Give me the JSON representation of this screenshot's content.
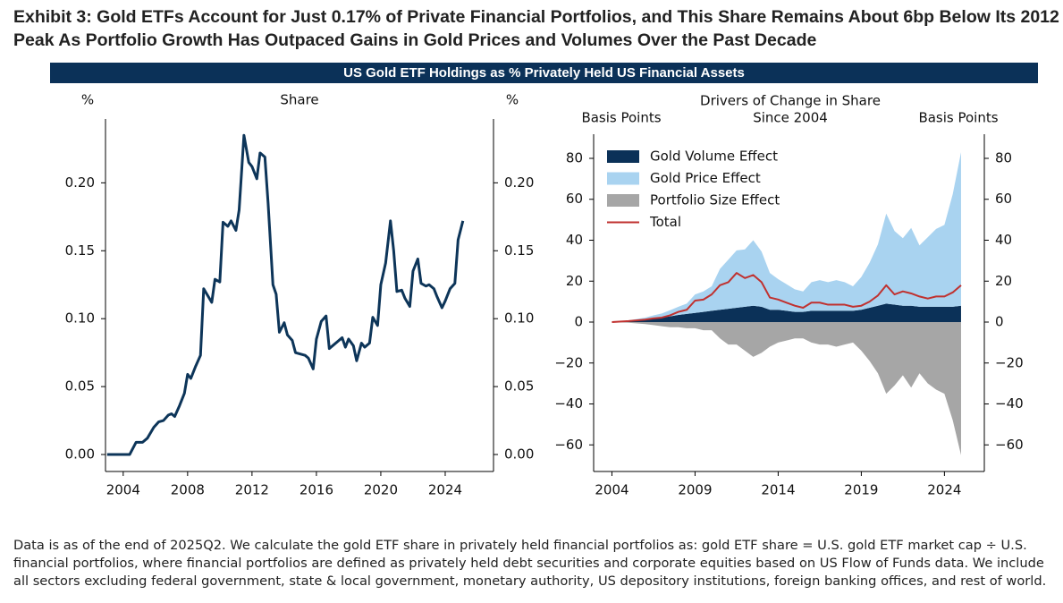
{
  "title": "Exhibit 3: Gold ETFs Account for Just 0.17% of Private Financial Portfolios, and This Share Remains About 6bp Below Its 2012 Peak As Portfolio Growth Has Outpaced Gains in Gold Prices and Volumes Over the Past Decade",
  "banner": "US Gold ETF Holdings as % Privately Held US Financial Assets",
  "note": "Data is as of the end of 2025Q2. We calculate the gold ETF share in privately held financial portfolios as: gold ETF share = U.S. gold ETF market cap ÷ U.S. financial portfolios, where financial portfolios are defined as privately held debt securities and corporate equities based on US Flow of Funds data. We include all sectors excluding federal government, state & local government, monetary authority, US depository institutions, foreign banking offices, and rest of world.",
  "chart_data": [
    {
      "type": "line",
      "title": "Share",
      "ylabel": "%",
      "y2label": "%",
      "x": [
        2003.0,
        2003.5,
        2004.0,
        2004.4,
        2004.8,
        2005.2,
        2005.5,
        2005.9,
        2006.2,
        2006.5,
        2006.8,
        2007.0,
        2007.2,
        2007.5,
        2007.8,
        2008.0,
        2008.2,
        2008.5,
        2008.8,
        2009.0,
        2009.2,
        2009.5,
        2009.7,
        2010.0,
        2010.2,
        2010.5,
        2010.7,
        2011.0,
        2011.2,
        2011.5,
        2011.8,
        2012.0,
        2012.3,
        2012.5,
        2012.8,
        2013.0,
        2013.3,
        2013.5,
        2013.7,
        2014.0,
        2014.2,
        2014.5,
        2014.7,
        2015.0,
        2015.3,
        2015.5,
        2015.8,
        2016.0,
        2016.3,
        2016.6,
        2016.8,
        2017.0,
        2017.3,
        2017.6,
        2017.8,
        2018.0,
        2018.3,
        2018.5,
        2018.8,
        2019.0,
        2019.3,
        2019.5,
        2019.8,
        2020.0,
        2020.3,
        2020.6,
        2020.8,
        2021.0,
        2021.3,
        2021.5,
        2021.8,
        2022.0,
        2022.3,
        2022.5,
        2022.8,
        2023.0,
        2023.3,
        2023.5,
        2023.8,
        2024.0,
        2024.3,
        2024.6,
        2024.8,
        2025.1
      ],
      "series": [
        {
          "color": "#0d3559",
          "values": [
            0,
            0,
            0,
            0,
            0.009,
            0.009,
            0.012,
            0.02,
            0.024,
            0.025,
            0.029,
            0.03,
            0.028,
            0.036,
            0.045,
            0.059,
            0.056,
            0.065,
            0.073,
            0.122,
            0.118,
            0.112,
            0.129,
            0.127,
            0.171,
            0.168,
            0.172,
            0.165,
            0.18,
            0.235,
            0.215,
            0.212,
            0.203,
            0.222,
            0.219,
            0.185,
            0.125,
            0.118,
            0.09,
            0.097,
            0.088,
            0.084,
            0.075,
            0.074,
            0.073,
            0.071,
            0.063,
            0.085,
            0.098,
            0.102,
            0.078,
            0.08,
            0.083,
            0.086,
            0.079,
            0.085,
            0.08,
            0.069,
            0.082,
            0.079,
            0.082,
            0.101,
            0.095,
            0.125,
            0.141,
            0.172,
            0.15,
            0.12,
            0.121,
            0.115,
            0.109,
            0.135,
            0.144,
            0.126,
            0.124,
            0.125,
            0.122,
            0.116,
            0.108,
            0.113,
            0.122,
            0.126,
            0.158,
            0.172
          ]
        }
      ],
      "xlim": [
        2002.9,
        2027.0
      ],
      "xticks": [
        2004,
        2008,
        2012,
        2016,
        2020,
        2024
      ],
      "ylim": [
        -0.0125,
        0.247
      ],
      "yticks": [
        {
          "value": 0,
          "label": "0.00"
        },
        {
          "value": 0.05,
          "label": "0.05"
        },
        {
          "value": 0.1,
          "label": "0.10"
        },
        {
          "value": 0.15,
          "label": "0.15"
        },
        {
          "value": 0.2,
          "label": "0.20"
        }
      ]
    },
    {
      "type": "area",
      "title": "Drivers of Change in Share",
      "subtitle": "Since 2004",
      "ylabel": "Basis Points",
      "y2label": "Basis Points",
      "stacked": true,
      "legend": "upper left",
      "x": [
        2004,
        2005,
        2006,
        2006.5,
        2007,
        2007.5,
        2008,
        2008.5,
        2009,
        2009.5,
        2010,
        2010.5,
        2011,
        2011.5,
        2012,
        2012.5,
        2013,
        2013.5,
        2014,
        2014.5,
        2015,
        2015.5,
        2016,
        2016.5,
        2017,
        2017.5,
        2018,
        2018.5,
        2019,
        2019.5,
        2020,
        2020.5,
        2021,
        2021.5,
        2022,
        2022.5,
        2023,
        2023.5,
        2024,
        2024.5,
        2025
      ],
      "series": [
        {
          "name": "Gold Volume Effect",
          "type": "area",
          "color": "#0b3158",
          "values": [
            0,
            0.5,
            1.2,
            1.8,
            2.2,
            2.8,
            3.5,
            4,
            4.5,
            5,
            5.5,
            6,
            6.5,
            7,
            7.5,
            8,
            7.5,
            6,
            6,
            5.5,
            5,
            5,
            5.5,
            5.5,
            5.5,
            5.5,
            5.5,
            5.5,
            6,
            7,
            8,
            9,
            8.5,
            8,
            8,
            7.5,
            7.5,
            7.5,
            7.5,
            7.5,
            8
          ]
        },
        {
          "name": "Gold Price Effect",
          "type": "area",
          "color": "#a9d3f0",
          "values": [
            0,
            0.3,
            1,
            1.5,
            2,
            3,
            4,
            5,
            9,
            10,
            12,
            20,
            24,
            28,
            28,
            32,
            27,
            18,
            15,
            13,
            11,
            10,
            14,
            15,
            14,
            15,
            14,
            12,
            16,
            22,
            30,
            44,
            36,
            33,
            38,
            30,
            34,
            38,
            40,
            55,
            75
          ]
        },
        {
          "name": "Portfolio Size Effect",
          "type": "area",
          "color": "#a6a6a6",
          "values": [
            0,
            -0.3,
            -1,
            -1.5,
            -2,
            -2.5,
            -2.5,
            -3,
            -3,
            -4,
            -4,
            -8,
            -11,
            -11,
            -14,
            -17,
            -15,
            -12,
            -10,
            -9,
            -8,
            -8,
            -10,
            -11,
            -11,
            -12,
            -11,
            -10,
            -14,
            -19,
            -25,
            -35,
            -31,
            -26,
            -32,
            -25,
            -30,
            -33,
            -35,
            -48,
            -65
          ]
        },
        {
          "name": "Total",
          "type": "line",
          "color": "#c0312f",
          "values": [
            0,
            0.5,
            1.2,
            1.8,
            2.2,
            3.3,
            5,
            6,
            10.5,
            11,
            13.5,
            18,
            19.5,
            24,
            21.5,
            23,
            19.5,
            12,
            11,
            9.5,
            8,
            7,
            9.5,
            9.5,
            8.5,
            8.5,
            8.5,
            7.5,
            8,
            10,
            13,
            18,
            13.5,
            15,
            14,
            12.5,
            11.5,
            12.5,
            12.5,
            14.5,
            18
          ]
        }
      ],
      "xlim": [
        2002.9,
        2026.4
      ],
      "xticks": [
        2004,
        2009,
        2014,
        2019,
        2024
      ],
      "ylim": [
        -73,
        91.8
      ],
      "yticks": [
        {
          "value": -60,
          "label": "−60"
        },
        {
          "value": -40,
          "label": "−40"
        },
        {
          "value": -20,
          "label": "−20"
        },
        0,
        20,
        40,
        60,
        80
      ]
    }
  ]
}
